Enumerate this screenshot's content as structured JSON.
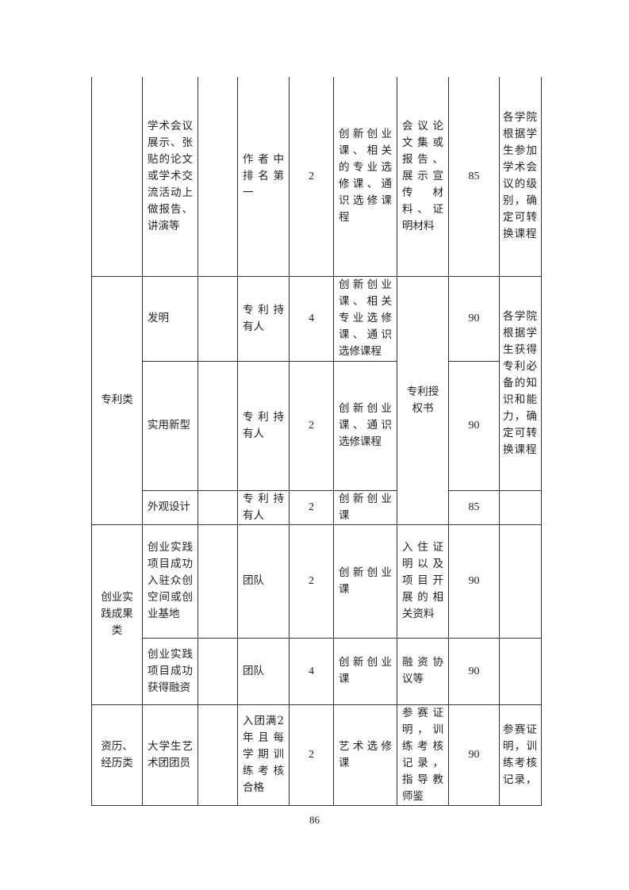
{
  "rows": [
    {
      "category": "",
      "item": "学术会议展示、张贴的论文或学术交流活动上做报告、讲演等",
      "blank": "",
      "requirement": "作者中排名第一",
      "credit": "2",
      "course": "创新创业课、相关的专业选修课、通识选修课程",
      "evidence": "会议论文集或报告、展示宣传材料、证明材料",
      "score": "85",
      "remark": "各学院根据学生参加学术会议的级别，确定可转换课程"
    },
    {
      "category": "专利类",
      "item": "发明",
      "blank": "",
      "requirement": "专利持有人",
      "credit": "4",
      "course": "创新创业课、相关专业选修课、通识选修课程",
      "evidence": "专利授权书",
      "score": "90",
      "remark": "各学院根据学生获得专利必备的知识和能力，确定可转换课程"
    },
    {
      "item": "实用新型",
      "blank": "",
      "requirement": "专利持有人",
      "credit": "2",
      "course": "创新创业课、通识选修课程",
      "score": "90"
    },
    {
      "item": "外观设计",
      "blank": "",
      "requirement": "专利持有人",
      "credit": "2",
      "course": "创新创业课",
      "score": "85",
      "remark": ""
    },
    {
      "category": "创业实践成果类",
      "item": "创业实践项目成功入驻众创空间或创业基地",
      "blank": "",
      "requirement": "团队",
      "credit": "2",
      "course": "创新创业课",
      "evidence": "入住证明以及项目开展的相关资料",
      "score": "90",
      "remark": ""
    },
    {
      "item": "创业实践项目成功获得融资",
      "blank": "",
      "requirement": "团队",
      "credit": "4",
      "course": "创新创业课",
      "evidence": "融资协议等",
      "score": "90",
      "remark": ""
    },
    {
      "category": "资历、经历类",
      "item": "大学生艺术团团员",
      "blank": "",
      "requirement": "入团满2年且每学期训练考核合格",
      "credit": "2",
      "course": "艺术选修课",
      "evidence": "参赛证明，训练考核记录，指导教师鉴",
      "score": "90",
      "remark": "参赛证明，训练考核记录，"
    }
  ],
  "page_number": "86"
}
